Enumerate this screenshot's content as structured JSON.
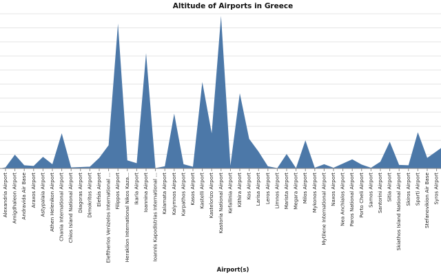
{
  "chart_data": {
    "type": "area",
    "title": "Altitude of Airports in Greece",
    "xlabel": "Airport(s)",
    "ylabel": "",
    "color": "#4c78a8",
    "grid": true,
    "ylim": [
      0,
      2200
    ],
    "categories": [
      "Alexandria Airport",
      "Amigdhaleon Airport",
      "Andravida Air Base",
      "Araxos Airport",
      "Astypalaia Airport",
      "Athen Helenikon Airport",
      "Chania International Airport",
      "Chios Island National Airport",
      "Diagoras Airport",
      "Dimokritos Airport",
      "Elefsis Airport",
      "Eleftherios Venizelos International ...",
      "Filippos Airport",
      "Heraklion International Nikos Kaza...",
      "Ikaria Airport",
      "Ioannina Airport",
      "Ioannis Kapodistrias International ...",
      "Kalamata Airport",
      "Kalymnos Airport",
      "Karpathos Airport",
      "Kasos Airport",
      "Kastelli Airport",
      "Kastelorizo Airport",
      "Kastoria National Airport",
      "Kefallinia Airport",
      "Kithira Airport",
      "Kos Airport",
      "Larisa Airport",
      "Leros Airport",
      "Limnos Airport",
      "Marista Airport",
      "Megara Airport",
      "Milos Airport",
      "Mykonos Airport",
      "Mytilene International Airport",
      "Naxos Airport",
      "Nea Anchialos Airport",
      "Paros National Airport",
      "Porto Cheli Airport",
      "Samos Airport",
      "Santorini Airport",
      "Sitia Airport",
      "Skiathos Island National Airport",
      "Skiros Airport",
      "Sparti Airport",
      "Stefanovikion Air Base",
      "Syros Airport"
    ],
    "series": [
      {
        "values": [
          15,
          195,
          45,
          35,
          165,
          60,
          500,
          15,
          20,
          25,
          150,
          330,
          2060,
          115,
          75,
          1640,
          5,
          30,
          780,
          60,
          25,
          1230,
          500,
          2170,
          40,
          1070,
          420,
          240,
          30,
          5,
          205,
          5,
          400,
          10,
          60,
          10,
          70,
          130,
          55,
          10,
          95,
          380,
          50,
          45,
          515,
          150,
          245
        ]
      }
    ]
  }
}
